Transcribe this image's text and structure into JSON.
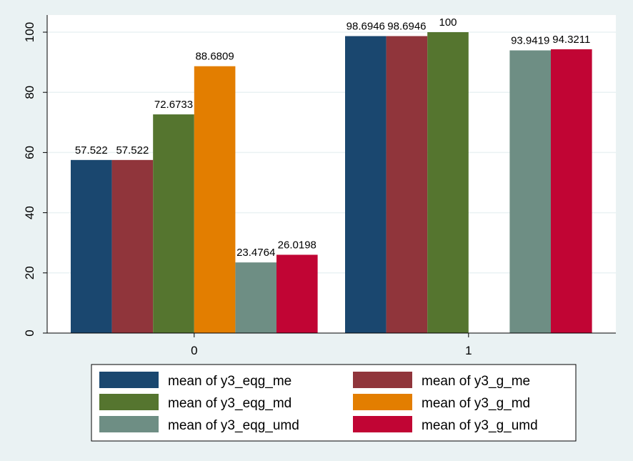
{
  "chart_data": {
    "type": "bar",
    "categories": [
      "0",
      "1"
    ],
    "ylim": [
      0,
      100
    ],
    "yticks": [
      0,
      20,
      40,
      60,
      80,
      100
    ],
    "grid": true,
    "legend_position": "bottom",
    "series": [
      {
        "name": "mean of y3_eqg_me",
        "color": "#1a476f",
        "values": [
          57.522,
          98.6946
        ],
        "labels": [
          "57.522",
          "98.6946"
        ]
      },
      {
        "name": "mean of y3_g_me",
        "color": "#90353b",
        "values": [
          57.522,
          98.6946
        ],
        "labels": [
          "57.522",
          "98.6946"
        ]
      },
      {
        "name": "mean of y3_eqg_md",
        "color": "#55752f",
        "values": [
          72.6733,
          100
        ],
        "labels": [
          "72.6733",
          "100"
        ]
      },
      {
        "name": "mean of y3_g_md",
        "color": "#e37e00",
        "values": [
          88.6809,
          null
        ],
        "labels": [
          "88.6809",
          ""
        ]
      },
      {
        "name": "mean of y3_eqg_umd",
        "color": "#6e8e84",
        "values": [
          23.4764,
          93.9419
        ],
        "labels": [
          "23.4764",
          "93.9419"
        ]
      },
      {
        "name": "mean of y3_g_umd",
        "color": "#c10534",
        "values": [
          26.0198,
          94.3211
        ],
        "labels": [
          "26.0198",
          "94.3211"
        ]
      }
    ]
  }
}
